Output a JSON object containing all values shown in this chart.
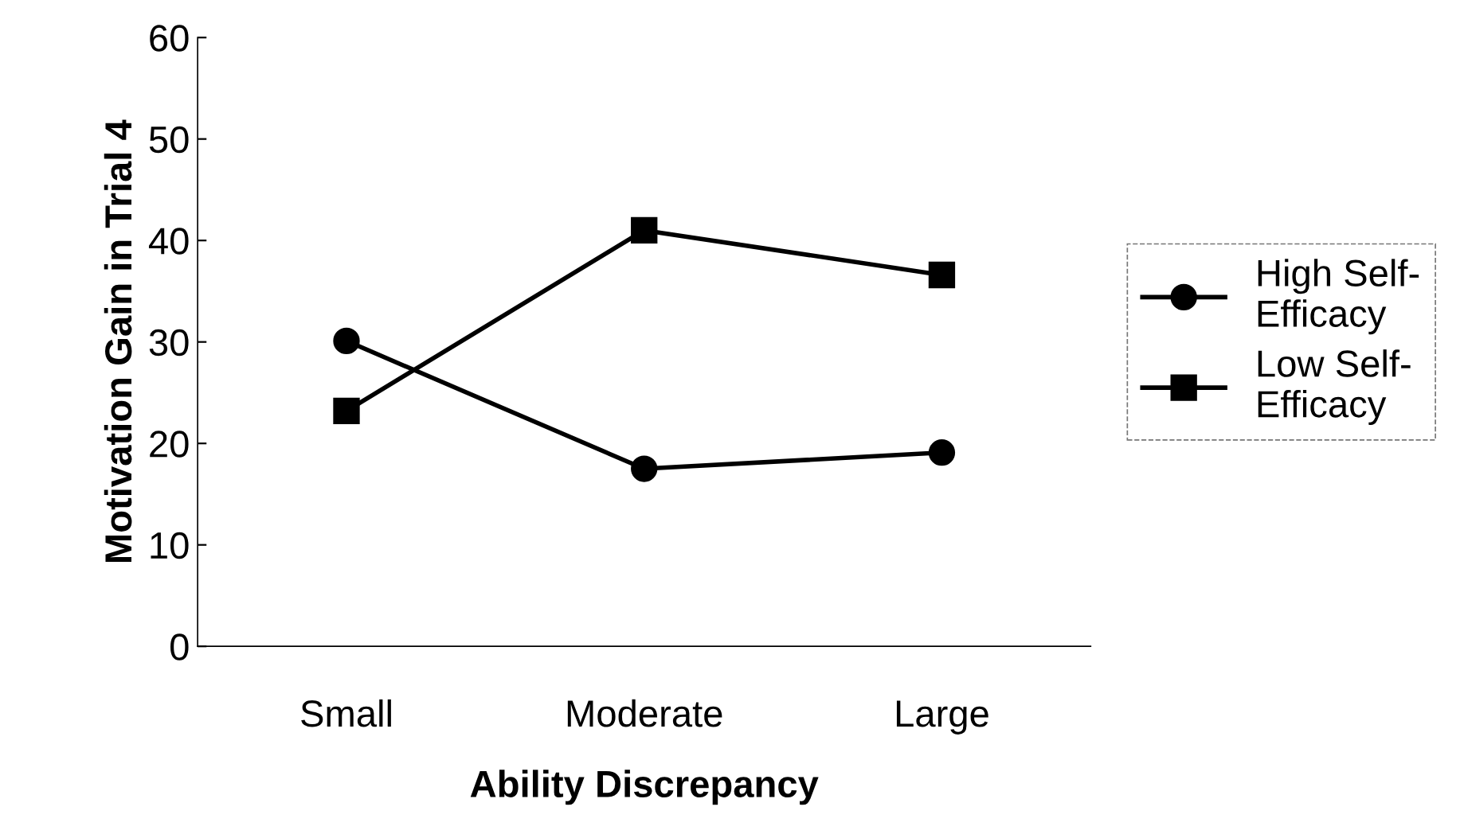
{
  "chart_data": {
    "type": "line",
    "xlabel": "Ability Discrepancy",
    "ylabel": "Motivation Gain in Trial 4",
    "categories": [
      "Small",
      "Moderate",
      "Large"
    ],
    "series": [
      {
        "name": "High Self-\nEfficacy",
        "color": "#000000",
        "values": [
          30.1,
          17.5,
          19.1
        ],
        "marker": "circle"
      },
      {
        "name": "Low Self-\nEfficacy",
        "color": "#000000",
        "values": [
          23.2,
          41.0,
          36.6
        ],
        "marker": "square"
      }
    ],
    "ylim": [
      0,
      60
    ],
    "yticks": [
      0,
      10,
      20,
      30,
      40,
      50,
      60
    ],
    "grid": false,
    "legend": "right",
    "line_style": "solid"
  }
}
